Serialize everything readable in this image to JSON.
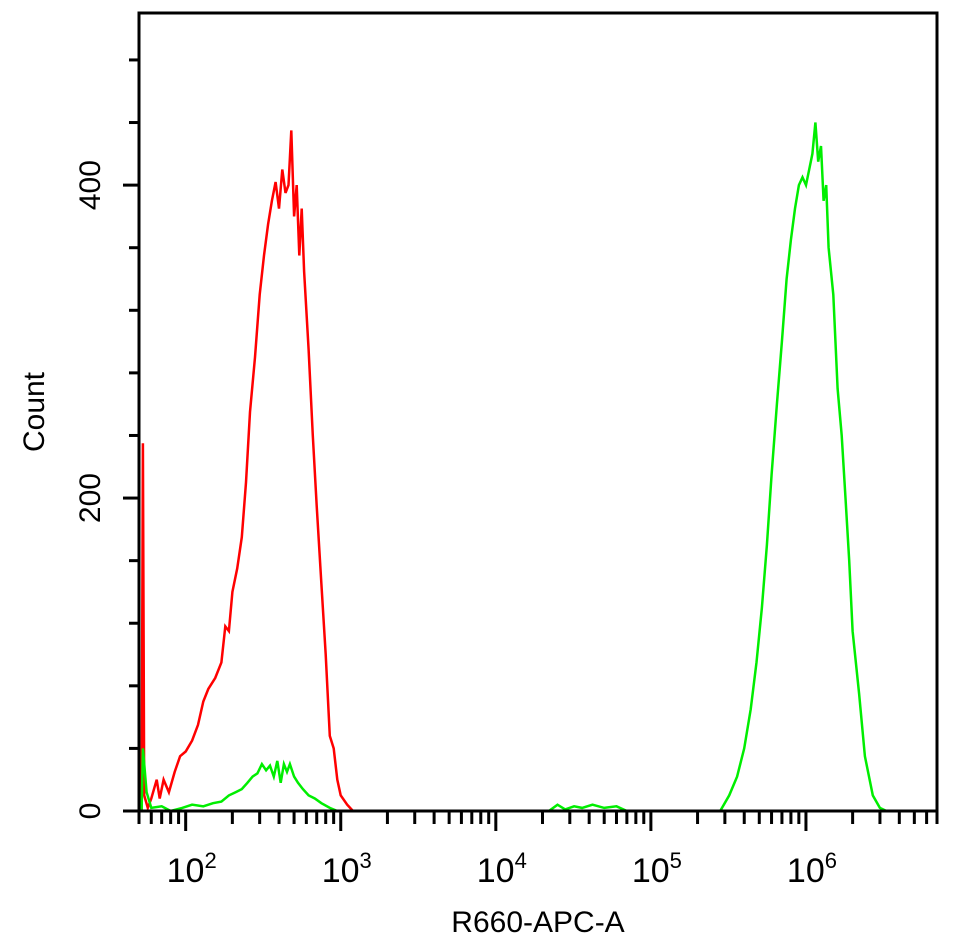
{
  "chart_data": {
    "type": "line",
    "title": "",
    "xlabel": "R660-APC-A",
    "ylabel": "Count",
    "x_scale": "log",
    "xlim": [
      50,
      7000000
    ],
    "ylim": [
      0,
      510
    ],
    "grid": false,
    "legend": "none",
    "x_tick_labels": [
      {
        "value": 100,
        "base": "10",
        "exp": "2"
      },
      {
        "value": 1000,
        "base": "10",
        "exp": "3"
      },
      {
        "value": 10000,
        "base": "10",
        "exp": "4"
      },
      {
        "value": 100000,
        "base": "10",
        "exp": "5"
      },
      {
        "value": 1000000,
        "base": "10",
        "exp": "6"
      }
    ],
    "y_tick_labels": [
      {
        "value": 0,
        "label": "0"
      },
      {
        "value": 200,
        "label": "200"
      },
      {
        "value": 400,
        "label": "400"
      }
    ],
    "y_minor_ticks": [
      40,
      80,
      120,
      160,
      240,
      280,
      320,
      360,
      440,
      480
    ],
    "series": [
      {
        "color": "#ff0000",
        "points": [
          [
            52,
            0
          ],
          [
            53,
            235
          ],
          [
            54,
            10
          ],
          [
            57,
            2
          ],
          [
            60,
            8
          ],
          [
            65,
            20
          ],
          [
            68,
            8
          ],
          [
            72,
            20
          ],
          [
            78,
            12
          ],
          [
            85,
            25
          ],
          [
            92,
            35
          ],
          [
            100,
            38
          ],
          [
            110,
            45
          ],
          [
            120,
            55
          ],
          [
            130,
            70
          ],
          [
            140,
            78
          ],
          [
            155,
            85
          ],
          [
            170,
            95
          ],
          [
            180,
            118
          ],
          [
            190,
            115
          ],
          [
            200,
            140
          ],
          [
            215,
            155
          ],
          [
            230,
            175
          ],
          [
            245,
            210
          ],
          [
            260,
            255
          ],
          [
            280,
            290
          ],
          [
            300,
            330
          ],
          [
            320,
            355
          ],
          [
            340,
            375
          ],
          [
            360,
            390
          ],
          [
            380,
            402
          ],
          [
            400,
            385
          ],
          [
            420,
            410
          ],
          [
            440,
            395
          ],
          [
            460,
            400
          ],
          [
            480,
            435
          ],
          [
            500,
            380
          ],
          [
            520,
            400
          ],
          [
            540,
            355
          ],
          [
            560,
            385
          ],
          [
            580,
            345
          ],
          [
            620,
            295
          ],
          [
            660,
            240
          ],
          [
            700,
            195
          ],
          [
            750,
            145
          ],
          [
            800,
            100
          ],
          [
            850,
            48
          ],
          [
            900,
            40
          ],
          [
            950,
            20
          ],
          [
            1000,
            10
          ],
          [
            1100,
            4
          ],
          [
            1200,
            0
          ],
          [
            1300,
            0
          ]
        ]
      },
      {
        "color": "#00ee00",
        "points": [
          [
            52,
            0
          ],
          [
            53,
            40
          ],
          [
            56,
            12
          ],
          [
            60,
            2
          ],
          [
            70,
            3
          ],
          [
            80,
            0
          ],
          [
            95,
            2
          ],
          [
            110,
            4
          ],
          [
            130,
            3
          ],
          [
            150,
            5
          ],
          [
            170,
            6
          ],
          [
            190,
            10
          ],
          [
            210,
            12
          ],
          [
            230,
            14
          ],
          [
            250,
            18
          ],
          [
            270,
            22
          ],
          [
            290,
            24
          ],
          [
            310,
            30
          ],
          [
            330,
            26
          ],
          [
            350,
            29
          ],
          [
            370,
            22
          ],
          [
            390,
            32
          ],
          [
            410,
            18
          ],
          [
            430,
            30
          ],
          [
            450,
            25
          ],
          [
            470,
            30
          ],
          [
            500,
            22
          ],
          [
            530,
            18
          ],
          [
            570,
            14
          ],
          [
            620,
            10
          ],
          [
            680,
            8
          ],
          [
            750,
            5
          ],
          [
            850,
            2
          ],
          [
            950,
            0
          ],
          [
            1100,
            0
          ],
          [
            22000,
            0
          ],
          [
            25000,
            4
          ],
          [
            28000,
            1
          ],
          [
            32000,
            3
          ],
          [
            36000,
            2
          ],
          [
            42000,
            4
          ],
          [
            50000,
            2
          ],
          [
            60000,
            3
          ],
          [
            70000,
            0
          ],
          [
            280000,
            0
          ],
          [
            320000,
            10
          ],
          [
            360000,
            22
          ],
          [
            400000,
            40
          ],
          [
            440000,
            65
          ],
          [
            480000,
            95
          ],
          [
            520000,
            130
          ],
          [
            560000,
            170
          ],
          [
            600000,
            215
          ],
          [
            650000,
            260
          ],
          [
            700000,
            300
          ],
          [
            750000,
            340
          ],
          [
            800000,
            365
          ],
          [
            850000,
            385
          ],
          [
            900000,
            400
          ],
          [
            950000,
            405
          ],
          [
            1000000,
            400
          ],
          [
            1050000,
            410
          ],
          [
            1100000,
            420
          ],
          [
            1150000,
            440
          ],
          [
            1200000,
            415
          ],
          [
            1250000,
            425
          ],
          [
            1300000,
            390
          ],
          [
            1350000,
            400
          ],
          [
            1400000,
            360
          ],
          [
            1500000,
            330
          ],
          [
            1600000,
            270
          ],
          [
            1700000,
            240
          ],
          [
            1800000,
            200
          ],
          [
            1900000,
            160
          ],
          [
            2000000,
            115
          ],
          [
            2200000,
            75
          ],
          [
            2400000,
            35
          ],
          [
            2700000,
            10
          ],
          [
            3000000,
            2
          ],
          [
            3300000,
            0
          ]
        ]
      }
    ]
  }
}
